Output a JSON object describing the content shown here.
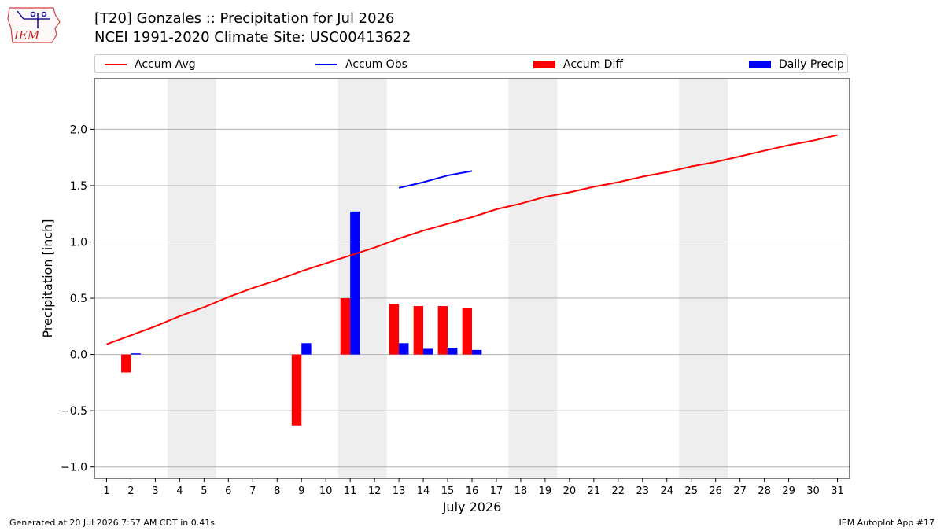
{
  "logo": {
    "text": "IEM"
  },
  "header": {
    "title_line1": "[T20] Gonzales :: Precipitation for Jul 2026",
    "title_line2": "NCEI 1991-2020 Climate Site: USC00413622"
  },
  "legend": [
    {
      "label": "Accum Avg",
      "kind": "line",
      "color": "#ff0000"
    },
    {
      "label": "Accum Obs",
      "kind": "line",
      "color": "#0000ff"
    },
    {
      "label": "Accum Diff",
      "kind": "box",
      "color": "#ff0000"
    },
    {
      "label": "Daily Precip",
      "kind": "box",
      "color": "#0000ff"
    }
  ],
  "chart_data": {
    "type": "bar",
    "xlabel": "July 2026",
    "ylabel": "Precipitation [inch]",
    "xlim": [
      0.5,
      31.5
    ],
    "ylim": [
      -1.1,
      2.45
    ],
    "x_ticks": [
      1,
      2,
      3,
      4,
      5,
      6,
      7,
      8,
      9,
      10,
      11,
      12,
      13,
      14,
      15,
      16,
      17,
      18,
      19,
      20,
      21,
      22,
      23,
      24,
      25,
      26,
      27,
      28,
      29,
      30,
      31
    ],
    "y_ticks": [
      -1.0,
      -0.5,
      0.0,
      0.5,
      1.0,
      1.5,
      2.0
    ],
    "y_tick_labels": [
      "−1.0",
      "−0.5",
      "0.0",
      "0.5",
      "1.0",
      "1.5",
      "2.0"
    ],
    "grid": "horizontal",
    "legend_position": "top",
    "weekend_shading": [
      [
        4,
        5
      ],
      [
        11,
        12
      ],
      [
        18,
        19
      ],
      [
        25,
        26
      ]
    ],
    "series": [
      {
        "name": "Accum Avg",
        "kind": "line",
        "color": "#ff0000",
        "x": [
          1,
          2,
          3,
          4,
          5,
          6,
          7,
          8,
          9,
          10,
          11,
          12,
          13,
          14,
          15,
          16,
          17,
          18,
          19,
          20,
          21,
          22,
          23,
          24,
          25,
          26,
          27,
          28,
          29,
          30,
          31
        ],
        "values": [
          0.09,
          0.17,
          0.25,
          0.34,
          0.42,
          0.51,
          0.59,
          0.66,
          0.74,
          0.81,
          0.88,
          0.95,
          1.03,
          1.1,
          1.16,
          1.22,
          1.29,
          1.34,
          1.4,
          1.44,
          1.49,
          1.53,
          1.58,
          1.62,
          1.67,
          1.71,
          1.76,
          1.81,
          1.86,
          1.9,
          1.95
        ]
      },
      {
        "name": "Accum Obs",
        "kind": "line",
        "color": "#0000ff",
        "x": [
          13,
          14,
          15,
          16
        ],
        "values": [
          1.48,
          1.53,
          1.59,
          1.63
        ]
      },
      {
        "name": "Accum Diff",
        "kind": "bar",
        "color": "#ff0000",
        "x": [
          2,
          9,
          11,
          13,
          14,
          15,
          16
        ],
        "values": [
          -0.16,
          -0.63,
          0.5,
          0.45,
          0.43,
          0.43,
          0.41
        ]
      },
      {
        "name": "Daily Precip",
        "kind": "bar",
        "color": "#0000ff",
        "x": [
          2,
          9,
          11,
          13,
          14,
          15,
          16
        ],
        "values": [
          0.01,
          0.1,
          1.27,
          0.1,
          0.05,
          0.06,
          0.04
        ]
      }
    ]
  },
  "footer": {
    "generated": "Generated at 20 Jul 2026 7:57 AM CDT in 0.41s",
    "app": "IEM Autoplot App #17"
  }
}
